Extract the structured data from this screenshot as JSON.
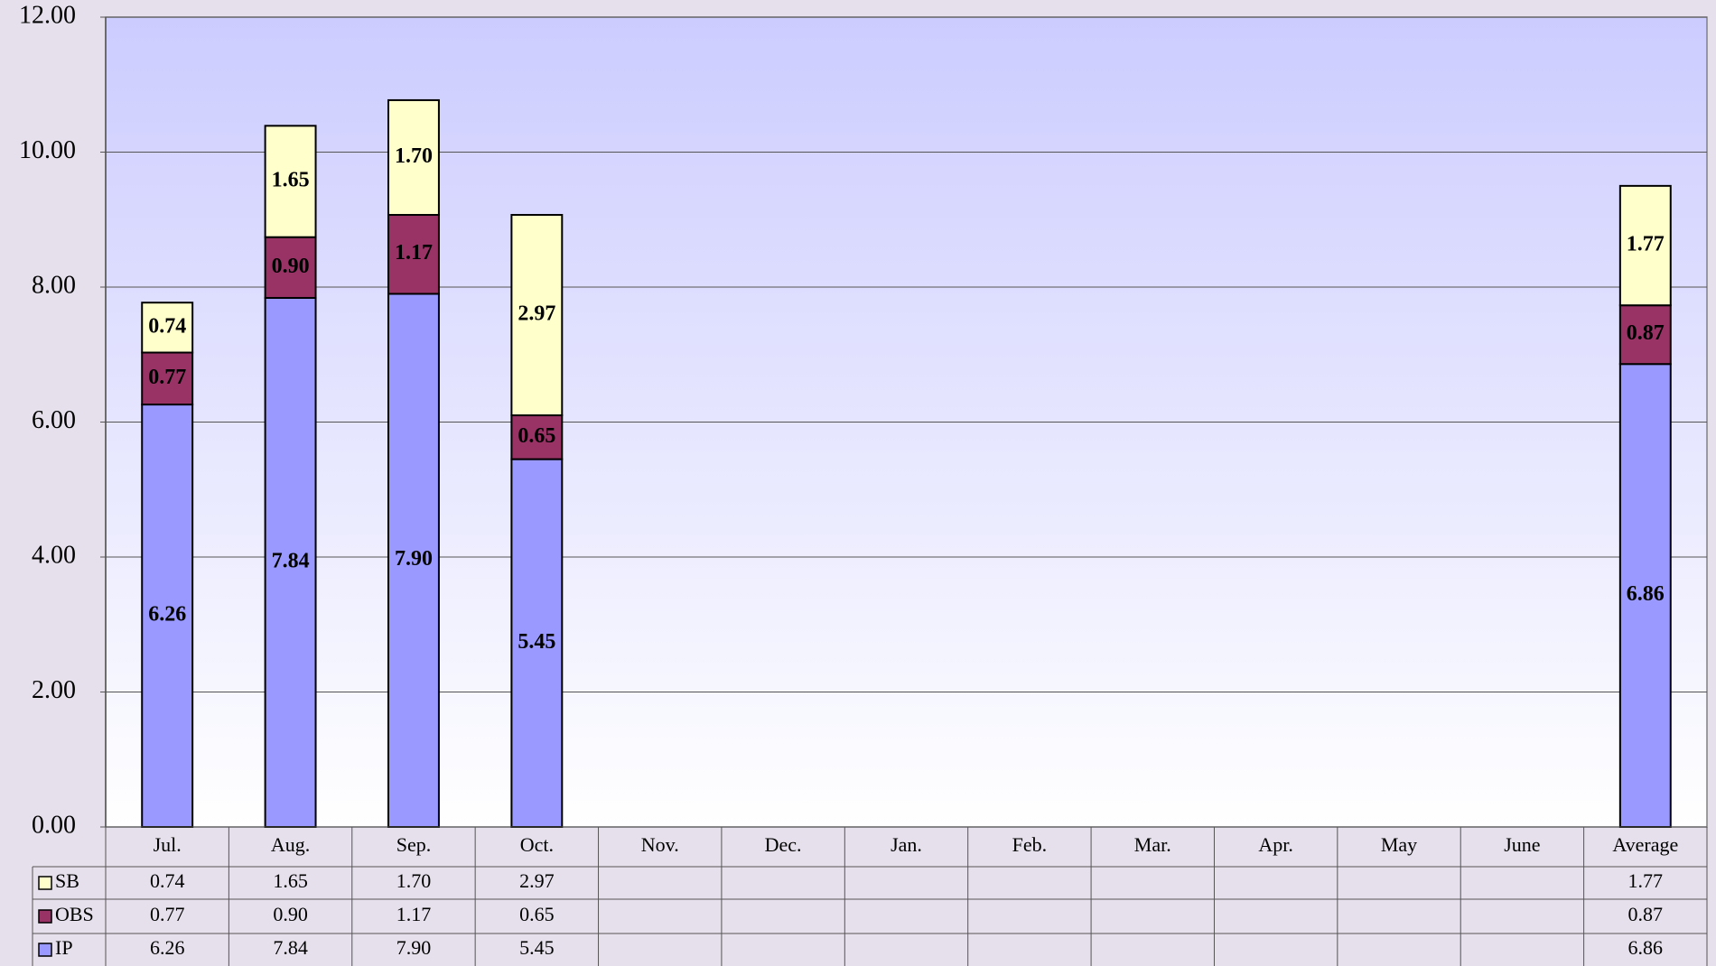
{
  "chart_data": {
    "type": "stacked_bar",
    "categories": [
      "Jul.",
      "Aug.",
      "Sep.",
      "Oct.",
      "Nov.",
      "Dec.",
      "Jan.",
      "Feb.",
      "Mar.",
      "Apr.",
      "May",
      "June",
      "Average"
    ],
    "series": [
      {
        "name": "IP",
        "color": "#9999ff",
        "values": [
          6.26,
          7.84,
          7.9,
          5.45,
          null,
          null,
          null,
          null,
          null,
          null,
          null,
          null,
          6.86
        ],
        "value_labels": [
          "6.26",
          "7.84",
          "7.90",
          "5.45",
          null,
          null,
          null,
          null,
          null,
          null,
          null,
          null,
          "6.86"
        ]
      },
      {
        "name": "OBS",
        "color": "#993366",
        "values": [
          0.77,
          0.9,
          1.17,
          0.65,
          null,
          null,
          null,
          null,
          null,
          null,
          null,
          null,
          0.87
        ],
        "value_labels": [
          "0.77",
          "0.90",
          "1.17",
          "0.65",
          null,
          null,
          null,
          null,
          null,
          null,
          null,
          null,
          "0.87"
        ]
      },
      {
        "name": "SB",
        "color": "#ffffcc",
        "values": [
          0.74,
          1.65,
          1.7,
          2.97,
          null,
          null,
          null,
          null,
          null,
          null,
          null,
          null,
          1.77
        ],
        "value_labels": [
          "0.74",
          "1.65",
          "1.70",
          "2.97",
          null,
          null,
          null,
          null,
          null,
          null,
          null,
          null,
          "1.77"
        ]
      }
    ],
    "ylim": [
      0,
      12
    ],
    "yticks": [
      {
        "value": 0,
        "label": "0.00"
      },
      {
        "value": 2,
        "label": "2.00"
      },
      {
        "value": 4,
        "label": "4.00"
      },
      {
        "value": 6,
        "label": "6.00"
      },
      {
        "value": 8,
        "label": "8.00"
      },
      {
        "value": 10,
        "label": "10.00"
      },
      {
        "value": 12,
        "label": "12.00"
      }
    ],
    "grid": true
  }
}
